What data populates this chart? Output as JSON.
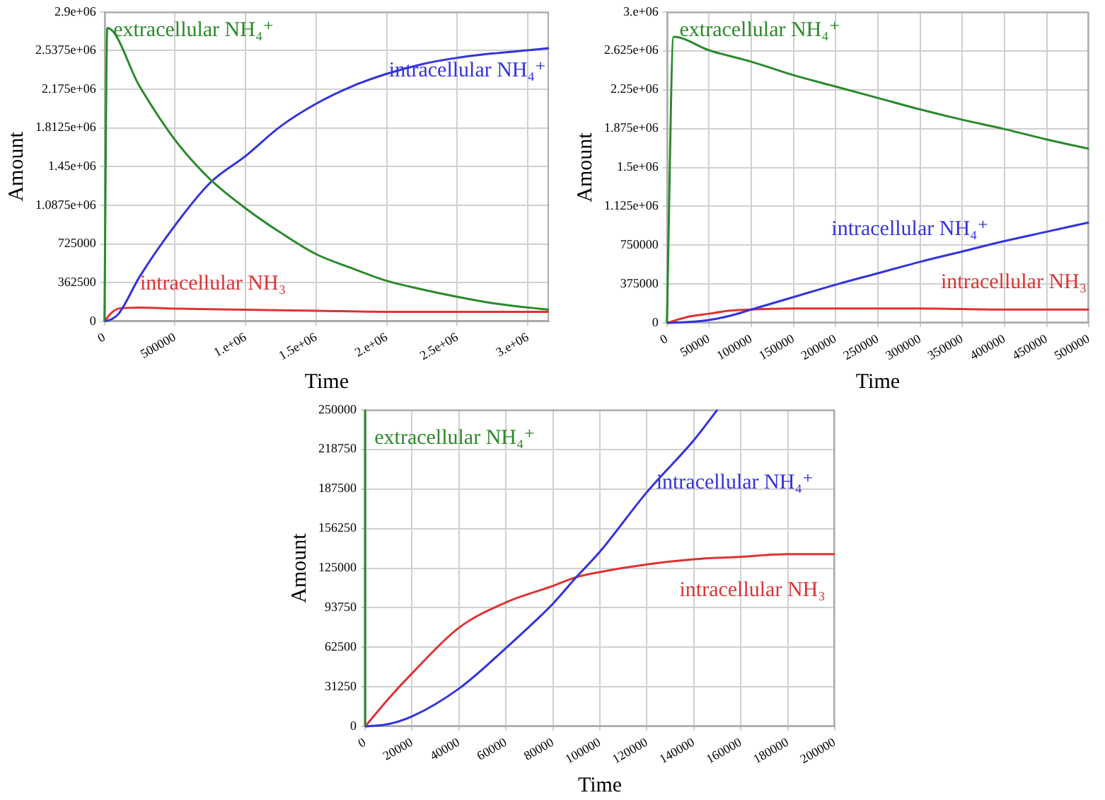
{
  "chart_data": [
    {
      "type": "line",
      "xlabel": "Time",
      "ylabel": "Amount",
      "grid": true,
      "legend": false,
      "marker": "none",
      "line_style": "solid",
      "xlim": [
        0,
        3150000
      ],
      "xticks": [
        0,
        500000,
        {
          "value": 1000000,
          "label": "1.e+06"
        },
        {
          "value": 1500000,
          "label": "1.5e+06"
        },
        {
          "value": 2000000,
          "label": "2.e+06"
        },
        {
          "value": 2500000,
          "label": "2.5e+06"
        },
        {
          "value": 3000000,
          "label": "3.e+06"
        }
      ],
      "ylim": [
        0,
        2900000
      ],
      "yticks": [
        0,
        362500,
        725000,
        {
          "value": 1087500,
          "label": "1.0875e+06"
        },
        {
          "value": 1450000,
          "label": "1.45e+06"
        },
        {
          "value": 1812500,
          "label": "1.8125e+06"
        },
        {
          "value": 2175000,
          "label": "2.175e+06"
        },
        {
          "value": 2537500,
          "label": "2.5375e+06"
        },
        {
          "value": 2900000,
          "label": "2.9e+06"
        }
      ],
      "series": [
        {
          "name": "extracellular NH₄⁺",
          "color": "#2a8a2a",
          "x": [
            0,
            20000,
            250000,
            500000,
            750000,
            1000000,
            1250000,
            1500000,
            1750000,
            2000000,
            2250000,
            2500000,
            2750000,
            3000000,
            3150000
          ],
          "values": [
            0,
            2750000,
            2200000,
            1700000,
            1330000,
            1060000,
            830000,
            630000,
            500000,
            380000,
            300000,
            230000,
            170000,
            130000,
            110000
          ]
        },
        {
          "name": "intracellular NH₄⁺",
          "color": "#3333dd",
          "x": [
            0,
            50000,
            100000,
            250000,
            500000,
            750000,
            1000000,
            1250000,
            1500000,
            1750000,
            2000000,
            2250000,
            2500000,
            2750000,
            3000000,
            3150000
          ],
          "values": [
            0,
            20000,
            70000,
            420000,
            900000,
            1300000,
            1550000,
            1830000,
            2040000,
            2200000,
            2320000,
            2410000,
            2470000,
            2510000,
            2540000,
            2560000
          ]
        },
        {
          "name": "intracellular NH₃",
          "color": "#dd3333",
          "x": [
            0,
            50000,
            100000,
            250000,
            500000,
            1000000,
            1500000,
            2000000,
            2500000,
            3000000,
            3150000
          ],
          "values": [
            0,
            80000,
            120000,
            130000,
            120000,
            110000,
            100000,
            90000,
            90000,
            90000,
            90000
          ]
        }
      ]
    },
    {
      "type": "line",
      "xlabel": "Time",
      "ylabel": "Amount",
      "grid": true,
      "legend": false,
      "marker": "none",
      "line_style": "solid",
      "xlim": [
        0,
        500000
      ],
      "xticks": [
        0,
        50000,
        100000,
        150000,
        200000,
        250000,
        300000,
        350000,
        400000,
        450000,
        500000
      ],
      "ylim": [
        0,
        3000000
      ],
      "yticks": [
        0,
        375000,
        750000,
        {
          "value": 1125000,
          "label": "1.125e+06"
        },
        {
          "value": 1500000,
          "label": "1.5e+06"
        },
        {
          "value": 1875000,
          "label": "1.875e+06"
        },
        {
          "value": 2250000,
          "label": "2.25e+06"
        },
        {
          "value": 2625000,
          "label": "2.625e+06"
        },
        {
          "value": 3000000,
          "label": "3.e+06"
        }
      ],
      "series": [
        {
          "name": "extracellular NH₄⁺",
          "color": "#2a8a2a",
          "x": [
            0,
            8000,
            50000,
            100000,
            150000,
            200000,
            250000,
            300000,
            350000,
            400000,
            450000,
            500000
          ],
          "values": [
            0,
            2760000,
            2630000,
            2520000,
            2390000,
            2280000,
            2170000,
            2060000,
            1960000,
            1870000,
            1770000,
            1680000
          ]
        },
        {
          "name": "intracellular NH₄⁺",
          "color": "#3333dd",
          "x": [
            0,
            25000,
            50000,
            75000,
            100000,
            150000,
            200000,
            250000,
            300000,
            350000,
            400000,
            450000,
            500000
          ],
          "values": [
            0,
            10000,
            30000,
            70000,
            130000,
            250000,
            370000,
            480000,
            590000,
            690000,
            790000,
            880000,
            970000
          ]
        },
        {
          "name": "intracellular NH₃",
          "color": "#dd3333",
          "x": [
            0,
            25000,
            50000,
            75000,
            100000,
            150000,
            200000,
            300000,
            400000,
            500000
          ],
          "values": [
            0,
            60000,
            90000,
            120000,
            130000,
            140000,
            140000,
            140000,
            130000,
            130000
          ]
        }
      ]
    },
    {
      "type": "line",
      "xlabel": "Time",
      "ylabel": "Amount",
      "grid": true,
      "legend": false,
      "marker": "none",
      "line_style": "solid",
      "xlim": [
        0,
        200000
      ],
      "xticks": [
        0,
        20000,
        40000,
        60000,
        80000,
        100000,
        120000,
        140000,
        160000,
        180000,
        200000
      ],
      "ylim": [
        0,
        250000
      ],
      "yticks": [
        0,
        31250,
        62500,
        93750,
        125000,
        156250,
        187500,
        218750,
        250000
      ],
      "series": [
        {
          "name": "extracellular NH₄⁺",
          "color": "#2a8a2a",
          "x": [
            0,
            0
          ],
          "values": [
            0,
            250000
          ]
        },
        {
          "name": "intracellular NH₄⁺",
          "color": "#3333dd",
          "x": [
            0,
            10000,
            20000,
            40000,
            60000,
            80000,
            90000,
            100000,
            120000,
            140000,
            150000
          ],
          "values": [
            0,
            2000,
            8000,
            30000,
            62000,
            97000,
            118000,
            138000,
            185000,
            226000,
            250000
          ]
        },
        {
          "name": "intracellular NH₃",
          "color": "#dd3333",
          "x": [
            0,
            10000,
            20000,
            40000,
            60000,
            80000,
            90000,
            100000,
            120000,
            140000,
            160000,
            180000,
            200000
          ],
          "values": [
            0,
            22000,
            42000,
            78000,
            98000,
            111000,
            118000,
            122000,
            128000,
            132000,
            134000,
            136000,
            136000
          ]
        }
      ]
    }
  ]
}
